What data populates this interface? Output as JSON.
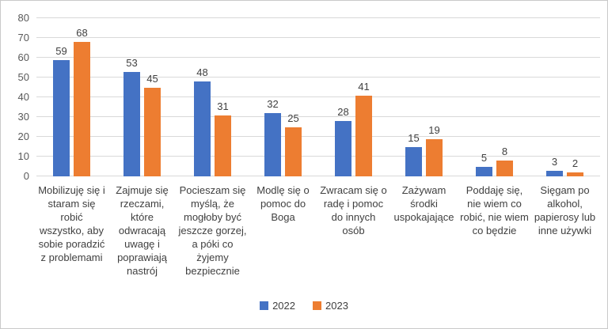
{
  "chart_data": {
    "type": "bar",
    "title": "",
    "xlabel": "",
    "ylabel": "",
    "categories": [
      "Mobilizuję się i staram się robić wszystko, aby sobie poradzić z problemami",
      "Zajmuje się rzeczami, które odwracają uwagę i poprawiają nastrój",
      "Pocieszam się myślą, że mogłoby być jeszcze gorzej, a póki co żyjemy bezpiecznie",
      "Modlę się o pomoc do Boga",
      "Zwracam się o radę i pomoc do innych osób",
      "Zażywam środki uspokajające",
      "Poddaję się, nie wiem co robić, nie wiem co będzie",
      "Sięgam po alkohol, papierosy lub inne używki"
    ],
    "series": [
      {
        "name": "2022",
        "color": "#4472C4",
        "values": [
          59,
          53,
          48,
          32,
          28,
          15,
          5,
          3
        ]
      },
      {
        "name": "2023",
        "color": "#ED7D31",
        "values": [
          68,
          45,
          31,
          25,
          41,
          19,
          8,
          2
        ]
      }
    ],
    "ylim": [
      0,
      80
    ],
    "yticks": [
      0,
      10,
      20,
      30,
      40,
      50,
      60,
      70,
      80
    ],
    "grid": true,
    "gridline_color": "#d9d9d9",
    "axis_tick_color": "#595959",
    "label_color": "#404040",
    "legend_position": "bottom",
    "data_labels": true
  }
}
